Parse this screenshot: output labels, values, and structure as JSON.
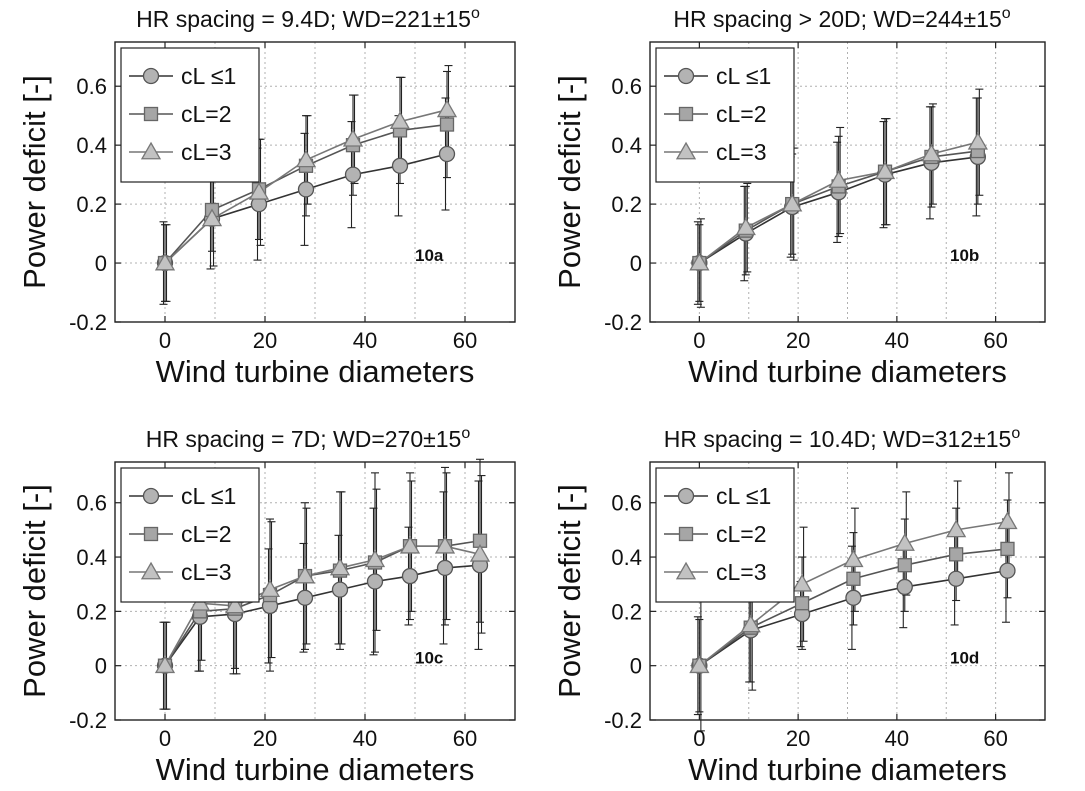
{
  "chart_data": [
    {
      "type": "line",
      "title": "HR spacing = 9.4D; WD=221±15",
      "title_sup": "o",
      "tag": "10a",
      "xlabel": "Wind turbine diameters",
      "ylabel": "Power deficit [-]",
      "xlim": [
        -10,
        70
      ],
      "ylim": [
        -0.2,
        0.75
      ],
      "xticks": [
        0,
        20,
        40,
        60
      ],
      "yticks": [
        -0.2,
        0,
        0.2,
        0.4,
        0.6
      ],
      "xtick_labels": [
        "0",
        "20",
        "40",
        "60"
      ],
      "ytick_labels": [
        "-0.2",
        "0",
        "0.2",
        "0.4",
        "0.6"
      ],
      "grid": true,
      "legend_position": "top-left",
      "series": [
        {
          "name": "cL ≤1",
          "marker": "circle",
          "x": [
            0,
            9.4,
            18.8,
            28.2,
            37.6,
            47,
            56.4
          ],
          "y": [
            0,
            0.15,
            0.2,
            0.25,
            0.3,
            0.33,
            0.37
          ],
          "err_lo": [
            0.14,
            0.17,
            0.19,
            0.19,
            0.18,
            0.17,
            0.19
          ],
          "err_hi": [
            0.14,
            0.17,
            0.19,
            0.19,
            0.18,
            0.17,
            0.19
          ]
        },
        {
          "name": "cL=2",
          "marker": "square",
          "x": [
            0,
            9.4,
            18.8,
            28.2,
            37.6,
            47,
            56.4
          ],
          "y": [
            0,
            0.18,
            0.25,
            0.33,
            0.4,
            0.45,
            0.47
          ],
          "err_lo": [
            0.13,
            0.14,
            0.17,
            0.17,
            0.17,
            0.18,
            0.18
          ],
          "err_hi": [
            0.13,
            0.14,
            0.17,
            0.17,
            0.17,
            0.18,
            0.18
          ]
        },
        {
          "name": "cL=3",
          "marker": "triangle",
          "x": [
            0,
            9.4,
            18.8,
            28.2,
            37.6,
            47,
            56.4
          ],
          "y": [
            0,
            0.15,
            0.24,
            0.35,
            0.42,
            0.48,
            0.52
          ],
          "err_lo": [
            0.13,
            0.16,
            0.18,
            0.15,
            0.15,
            0.15,
            0.15
          ],
          "err_hi": [
            0.13,
            0.16,
            0.18,
            0.15,
            0.15,
            0.15,
            0.15
          ]
        }
      ]
    },
    {
      "type": "line",
      "title": "HR spacing > 20D; WD=244±15",
      "title_sup": "o",
      "tag": "10b",
      "xlabel": "Wind turbine diameters",
      "ylabel": "Power deficit [-]",
      "xlim": [
        -10,
        70
      ],
      "ylim": [
        -0.2,
        0.75
      ],
      "xticks": [
        0,
        20,
        40,
        60
      ],
      "yticks": [
        -0.2,
        0,
        0.2,
        0.4,
        0.6
      ],
      "xtick_labels": [
        "0",
        "20",
        "40",
        "60"
      ],
      "ytick_labels": [
        "-0.2",
        "0",
        "0.2",
        "0.4",
        "0.6"
      ],
      "grid": true,
      "legend_position": "top-left",
      "series": [
        {
          "name": "cL ≤1",
          "marker": "circle",
          "x": [
            0,
            9.4,
            18.8,
            28.2,
            37.6,
            47,
            56.4
          ],
          "y": [
            0,
            0.1,
            0.19,
            0.24,
            0.3,
            0.34,
            0.36
          ],
          "err_lo": [
            0.14,
            0.16,
            0.17,
            0.17,
            0.18,
            0.19,
            0.2
          ],
          "err_hi": [
            0.14,
            0.16,
            0.17,
            0.17,
            0.18,
            0.19,
            0.2
          ]
        },
        {
          "name": "cL=2",
          "marker": "square",
          "x": [
            0,
            9.4,
            18.8,
            28.2,
            37.6,
            47,
            56.4
          ],
          "y": [
            0,
            0.11,
            0.2,
            0.26,
            0.31,
            0.36,
            0.38
          ],
          "err_lo": [
            0.13,
            0.15,
            0.17,
            0.17,
            0.18,
            0.17,
            0.18
          ],
          "err_hi": [
            0.13,
            0.15,
            0.17,
            0.17,
            0.18,
            0.17,
            0.18
          ]
        },
        {
          "name": "cL=3",
          "marker": "triangle",
          "x": [
            0,
            9.4,
            18.8,
            28.2,
            37.6,
            47,
            56.4
          ],
          "y": [
            0,
            0.12,
            0.2,
            0.28,
            0.31,
            0.37,
            0.41
          ],
          "err_lo": [
            0.15,
            0.15,
            0.19,
            0.18,
            0.18,
            0.17,
            0.18
          ],
          "err_hi": [
            0.15,
            0.15,
            0.19,
            0.18,
            0.18,
            0.17,
            0.18
          ]
        }
      ]
    },
    {
      "type": "line",
      "title": "HR spacing = 7D; WD=270±15",
      "title_sup": "o",
      "tag": "10c",
      "xlabel": "Wind turbine diameters",
      "ylabel": "Power deficit [-]",
      "xlim": [
        -10,
        70
      ],
      "ylim": [
        -0.2,
        0.75
      ],
      "xticks": [
        0,
        20,
        40,
        60
      ],
      "yticks": [
        -0.2,
        0,
        0.2,
        0.4,
        0.6
      ],
      "xtick_labels": [
        "0",
        "20",
        "40",
        "60"
      ],
      "ytick_labels": [
        "-0.2",
        "0",
        "0.2",
        "0.4",
        "0.6"
      ],
      "grid": true,
      "legend_position": "top-left",
      "series": [
        {
          "name": "cL ≤1",
          "marker": "circle",
          "x": [
            0,
            7,
            14,
            21,
            28,
            35,
            42,
            49,
            56,
            63
          ],
          "y": [
            0,
            0.18,
            0.19,
            0.22,
            0.25,
            0.28,
            0.31,
            0.33,
            0.36,
            0.37
          ],
          "err_lo": [
            0.16,
            0.2,
            0.22,
            0.21,
            0.2,
            0.2,
            0.27,
            0.18,
            0.28,
            0.31
          ],
          "err_hi": [
            0.16,
            0.2,
            0.22,
            0.21,
            0.2,
            0.2,
            0.27,
            0.18,
            0.28,
            0.31
          ]
        },
        {
          "name": "cL=2",
          "marker": "square",
          "x": [
            0,
            7,
            14,
            21,
            28,
            35,
            42,
            49,
            56,
            63
          ],
          "y": [
            0,
            0.2,
            0.21,
            0.26,
            0.33,
            0.35,
            0.38,
            0.44,
            0.44,
            0.46
          ],
          "err_lo": [
            0.16,
            0.22,
            0.22,
            0.28,
            0.27,
            0.29,
            0.33,
            0.27,
            0.29,
            0.3
          ],
          "err_hi": [
            0.16,
            0.22,
            0.22,
            0.28,
            0.27,
            0.29,
            0.33,
            0.27,
            0.29,
            0.3
          ]
        },
        {
          "name": "cL=3",
          "marker": "triangle",
          "x": [
            0,
            7,
            14,
            21,
            28,
            35,
            42,
            49,
            56,
            63
          ],
          "y": [
            0,
            0.23,
            0.22,
            0.28,
            0.33,
            0.36,
            0.39,
            0.44,
            0.44,
            0.41
          ],
          "err_lo": [
            0.16,
            0.21,
            0.25,
            0.25,
            0.25,
            0.28,
            0.26,
            0.24,
            0.27,
            0.29
          ],
          "err_hi": [
            0.16,
            0.21,
            0.25,
            0.25,
            0.25,
            0.28,
            0.26,
            0.24,
            0.27,
            0.29
          ]
        }
      ]
    },
    {
      "type": "line",
      "title": "HR spacing = 10.4D; WD=312±15",
      "title_sup": "o",
      "tag": "10d",
      "xlabel": "Wind turbine diameters",
      "ylabel": "Power deficit [-]",
      "xlim": [
        -10,
        70
      ],
      "ylim": [
        -0.2,
        0.75
      ],
      "xticks": [
        0,
        20,
        40,
        60
      ],
      "yticks": [
        -0.2,
        0,
        0.2,
        0.4,
        0.6
      ],
      "xtick_labels": [
        "0",
        "20",
        "40",
        "60"
      ],
      "ytick_labels": [
        "-0.2",
        "0",
        "0.2",
        "0.4",
        "0.6"
      ],
      "grid": true,
      "legend_position": "top-left",
      "series": [
        {
          "name": "cL ≤1",
          "marker": "circle",
          "x": [
            0,
            10.4,
            20.8,
            31.2,
            41.6,
            52,
            62.4
          ],
          "y": [
            0,
            0.13,
            0.19,
            0.25,
            0.29,
            0.32,
            0.35
          ],
          "err_lo": [
            0.18,
            0.19,
            0.12,
            0.19,
            0.15,
            0.17,
            0.19
          ],
          "err_hi": [
            0.18,
            0.19,
            0.12,
            0.19,
            0.15,
            0.17,
            0.19
          ]
        },
        {
          "name": "cL=2",
          "marker": "square",
          "x": [
            0,
            10.4,
            20.8,
            31.2,
            41.6,
            52,
            62.4
          ],
          "y": [
            0,
            0.14,
            0.23,
            0.32,
            0.37,
            0.41,
            0.43
          ],
          "err_lo": [
            0.17,
            0.2,
            0.17,
            0.17,
            0.17,
            0.17,
            0.18
          ],
          "err_hi": [
            0.17,
            0.2,
            0.17,
            0.17,
            0.17,
            0.17,
            0.18
          ]
        },
        {
          "name": "cL=3",
          "marker": "triangle",
          "x": [
            0,
            10.4,
            20.8,
            31.2,
            41.6,
            52,
            62.4
          ],
          "y": [
            0,
            0.15,
            0.3,
            0.39,
            0.45,
            0.5,
            0.53
          ],
          "err_lo": [
            0.24,
            0.24,
            0.21,
            0.19,
            0.19,
            0.18,
            0.18
          ],
          "err_hi": [
            0.24,
            0.24,
            0.21,
            0.19,
            0.19,
            0.18,
            0.18
          ]
        }
      ]
    }
  ]
}
